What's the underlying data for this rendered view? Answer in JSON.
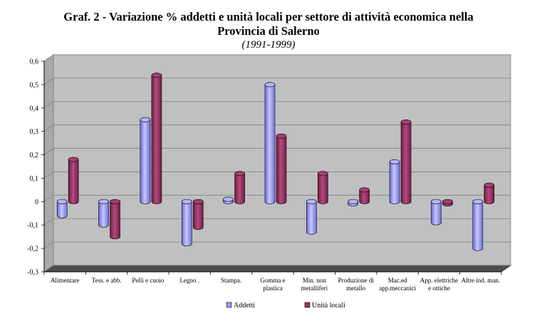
{
  "chart_data": {
    "type": "bar",
    "title_line1": "Graf.  2  -  Variazione % addetti e unità locali per settore di attività economica nella",
    "title_line2": "Provincia di Salerno",
    "subtitle": "(1991-1999)",
    "categories": [
      [
        "Alimentare"
      ],
      [
        "Tess. e abb."
      ],
      [
        "Pelli e cuoio"
      ],
      [
        "Legno ."
      ],
      [
        "Stampa."
      ],
      [
        "Gomma e",
        "plastica"
      ],
      [
        "Min. non",
        "metalliferi"
      ],
      [
        "Produzione di",
        "metallo"
      ],
      [
        "Mac.ed",
        "app.meccanici"
      ],
      [
        "App. elettriche",
        "e ottiche"
      ],
      [
        "Altre ind. man."
      ]
    ],
    "series": [
      {
        "name": "Addetti",
        "color": "#9999ff",
        "values": [
          -0.06,
          -0.1,
          0.35,
          -0.18,
          0.01,
          0.5,
          -0.13,
          -0.01,
          0.17,
          -0.09,
          -0.2
        ]
      },
      {
        "name": "Unità locali",
        "color": "#993366",
        "values": [
          0.18,
          -0.15,
          0.54,
          -0.11,
          0.12,
          0.28,
          0.12,
          0.05,
          0.34,
          -0.01,
          0.07
        ]
      }
    ],
    "ylim": [
      -0.3,
      0.6
    ],
    "yticks": [
      "0,6",
      "0,5",
      "0,4",
      "0,3",
      "0,2",
      "0,1",
      "0",
      "-0,1",
      "-0,2",
      "-0,3"
    ],
    "legend_position": "bottom",
    "grid": true
  }
}
